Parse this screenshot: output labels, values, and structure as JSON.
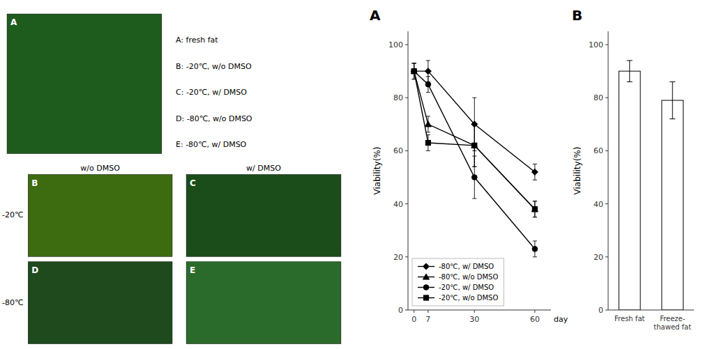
{
  "chart_data": [
    {
      "type": "line",
      "title": "A",
      "xlabel": "day",
      "ylabel": "Viability(%)",
      "x": [
        0,
        7,
        30,
        60
      ],
      "series": [
        {
          "name": "-80℃, w/ DMSO",
          "color": "black",
          "marker": "diamond",
          "values": [
            90,
            90,
            70,
            52
          ],
          "errors": [
            3,
            4,
            10,
            3
          ]
        },
        {
          "name": "-80℃, w/o DMSO",
          "color": "black",
          "marker": "triangle",
          "values": [
            90,
            70,
            62,
            38
          ],
          "errors": [
            3,
            3,
            8,
            3
          ]
        },
        {
          "name": "-20℃, w/ DMSO",
          "color": "black",
          "marker": "circle",
          "values": [
            90,
            85,
            50,
            23
          ],
          "errors": [
            3,
            3,
            8,
            3
          ]
        },
        {
          "name": "-20℃, w/o DMSO",
          "color": "black",
          "marker": "square",
          "values": [
            90,
            63,
            62,
            38
          ],
          "errors": [
            3,
            3,
            8,
            3
          ]
        }
      ],
      "xlim": [
        -3,
        68
      ],
      "xticks": [
        0,
        7,
        30,
        60
      ],
      "ylim": [
        0,
        105
      ],
      "yticks": [
        0,
        20,
        40,
        60,
        80,
        100
      ],
      "grid": false,
      "legend": "lower left"
    },
    {
      "type": "bar",
      "title": "B",
      "ylabel": "Viability(%)",
      "categories": [
        "Fresh fat",
        "Freeze-\nthawed fat"
      ],
      "values": [
        90,
        79
      ],
      "errors": [
        4,
        7
      ],
      "color": "white",
      "ylim": [
        0,
        105
      ],
      "yticks": [
        0,
        20,
        40,
        60,
        80,
        100
      ],
      "grid": false
    },
    {
      "type": "image",
      "categories": [
        "A",
        "B",
        "C",
        "D",
        "E"
      ],
      "colors": [
        "#1e5c1e",
        "#3d6b0f",
        "#1a4d1a",
        "#1e4a1e",
        "#2a6a2a"
      ],
      "annotations": [
        "A: fresh fat",
        "B: -20℃, w/o DMSO",
        "C: -20℃, w/ DMSO",
        "D: -80℃, w/o DMSO",
        "E: -80℃, w/ DMSO",
        "w/o DMSO",
        "w/ DMSO",
        "-20℃",
        "-80℃"
      ]
    }
  ]
}
